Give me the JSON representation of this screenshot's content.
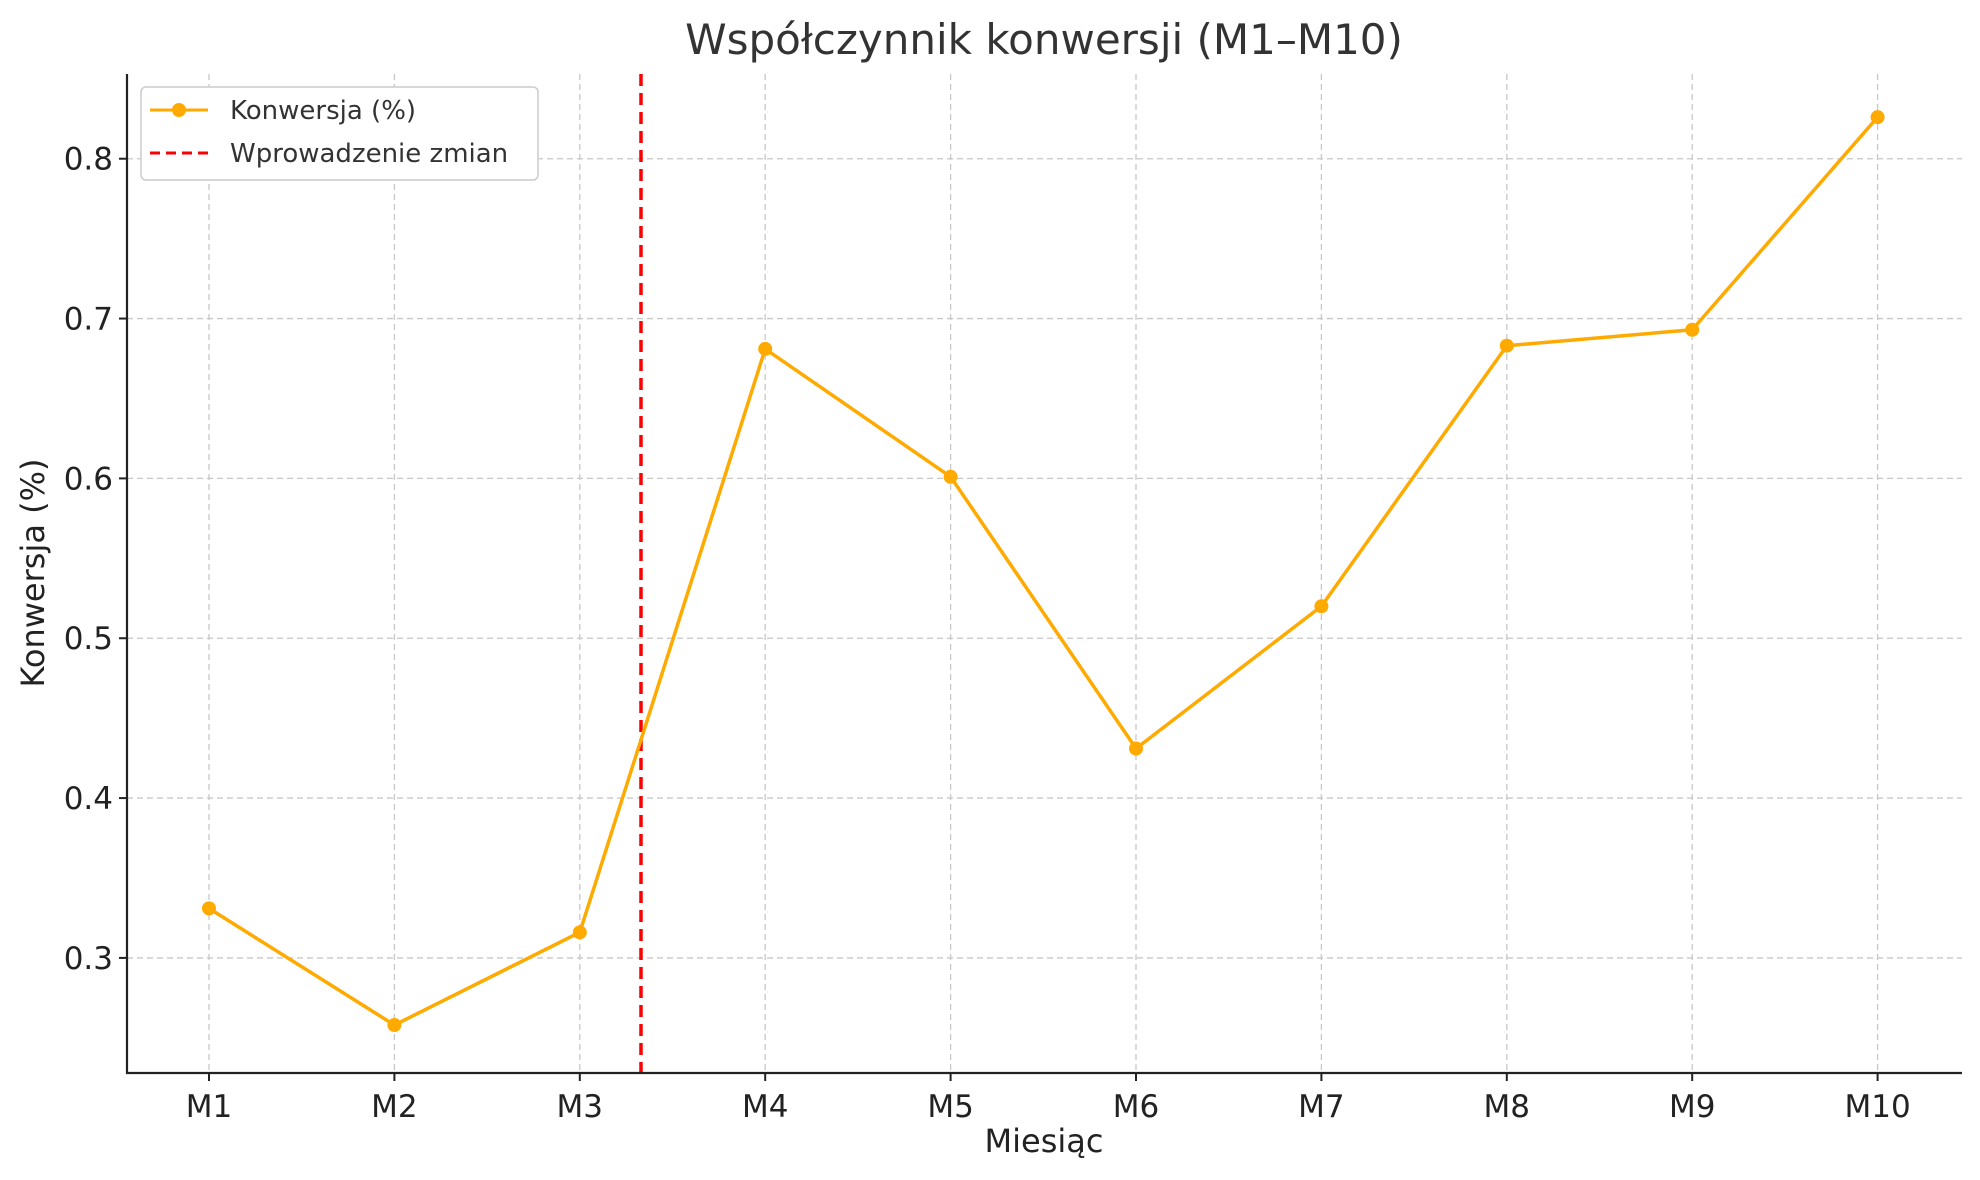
{
  "chart_data": {
    "type": "line",
    "title": "Współczynnik konwersji (M1–M10)",
    "xlabel": "Miesiąc",
    "ylabel": "Konwersja (%)",
    "categories": [
      "M1",
      "M2",
      "M3",
      "M4",
      "M5",
      "M6",
      "M7",
      "M8",
      "M9",
      "M10"
    ],
    "series": [
      {
        "name": "Konwersja (%)",
        "color": "#ffaa00",
        "values": [
          0.331,
          0.258,
          0.316,
          0.681,
          0.601,
          0.431,
          0.52,
          0.683,
          0.693,
          0.826
        ]
      }
    ],
    "marker_line": {
      "name": "Wprowadzenie zmian",
      "color": "#ff0000",
      "x": 3.33,
      "style": "dashed"
    },
    "yticks": [
      "0.3",
      "0.4",
      "0.5",
      "0.6",
      "0.7",
      "0.8"
    ],
    "ylim": [
      0.228,
      0.853
    ],
    "grid": true,
    "legend": "top-left"
  }
}
